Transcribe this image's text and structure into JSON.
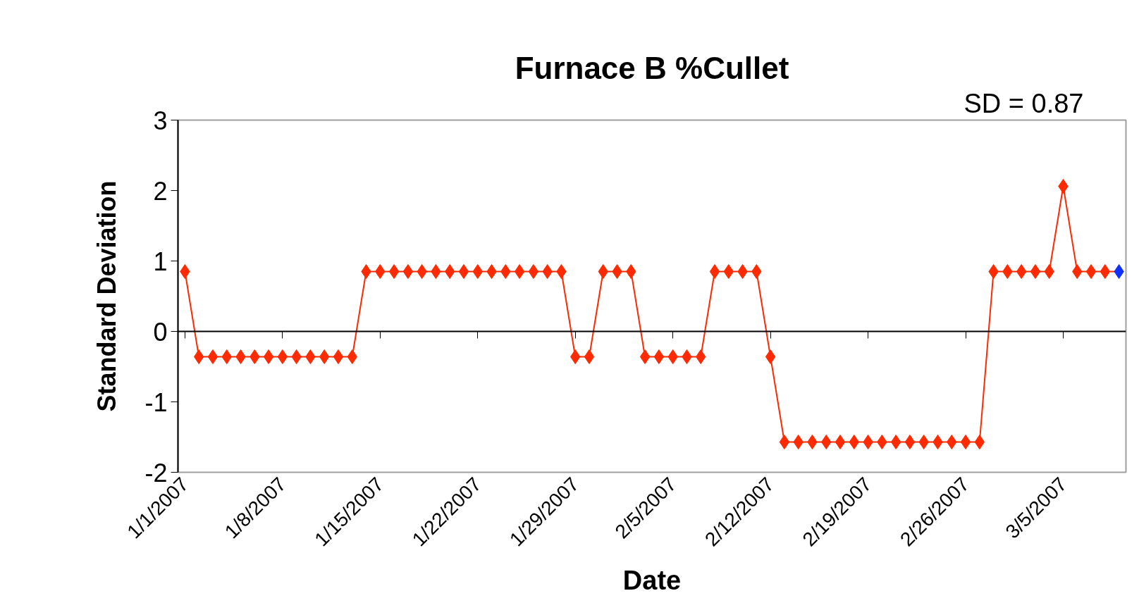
{
  "chart_data": {
    "type": "line",
    "title": "Furnace B %Cullet",
    "xlabel": "Date",
    "ylabel": "Standard Deviation",
    "annotations": [
      "SD = 0.87"
    ],
    "x": [
      "2007-01-01",
      "2007-01-02",
      "2007-01-03",
      "2007-01-04",
      "2007-01-05",
      "2007-01-06",
      "2007-01-07",
      "2007-01-08",
      "2007-01-09",
      "2007-01-10",
      "2007-01-11",
      "2007-01-12",
      "2007-01-13",
      "2007-01-14",
      "2007-01-15",
      "2007-01-16",
      "2007-01-17",
      "2007-01-18",
      "2007-01-19",
      "2007-01-20",
      "2007-01-21",
      "2007-01-22",
      "2007-01-23",
      "2007-01-24",
      "2007-01-25",
      "2007-01-26",
      "2007-01-27",
      "2007-01-28",
      "2007-01-29",
      "2007-01-30",
      "2007-01-31",
      "2007-02-01",
      "2007-02-02",
      "2007-02-03",
      "2007-02-04",
      "2007-02-05",
      "2007-02-06",
      "2007-02-07",
      "2007-02-08",
      "2007-02-09",
      "2007-02-10",
      "2007-02-11",
      "2007-02-12",
      "2007-02-13",
      "2007-02-14",
      "2007-02-15",
      "2007-02-16",
      "2007-02-17",
      "2007-02-18",
      "2007-02-19",
      "2007-02-20",
      "2007-02-21",
      "2007-02-22",
      "2007-02-23",
      "2007-02-24",
      "2007-02-25",
      "2007-02-26",
      "2007-02-27",
      "2007-02-28",
      "2007-03-01",
      "2007-03-02",
      "2007-03-03",
      "2007-03-04",
      "2007-03-05",
      "2007-03-06",
      "2007-03-07",
      "2007-03-08",
      "2007-03-09"
    ],
    "series": [
      {
        "color": "#ff2a00",
        "colors": [
          "#ff2a00",
          "#ff2a00",
          "#ff2a00",
          "#ff2a00",
          "#ff2a00",
          "#ff2a00",
          "#ff2a00",
          "#ff2a00",
          "#ff2a00",
          "#ff2a00",
          "#ff2a00",
          "#ff2a00",
          "#ff2a00",
          "#ff2a00",
          "#ff2a00",
          "#ff2a00",
          "#ff2a00",
          "#ff2a00",
          "#ff2a00",
          "#ff2a00",
          "#ff2a00",
          "#ff2a00",
          "#ff2a00",
          "#ff2a00",
          "#ff2a00",
          "#ff2a00",
          "#ff2a00",
          "#ff2a00",
          "#ff2a00",
          "#ff2a00",
          "#ff2a00",
          "#ff2a00",
          "#ff2a00",
          "#ff2a00",
          "#ff2a00",
          "#ff2a00",
          "#ff2a00",
          "#ff2a00",
          "#ff2a00",
          "#ff2a00",
          "#ff2a00",
          "#ff2a00",
          "#ff2a00",
          "#ff2a00",
          "#ff2a00",
          "#ff2a00",
          "#ff2a00",
          "#ff2a00",
          "#ff2a00",
          "#ff2a00",
          "#ff2a00",
          "#ff2a00",
          "#ff2a00",
          "#ff2a00",
          "#ff2a00",
          "#ff2a00",
          "#ff2a00",
          "#ff2a00",
          "#ff2a00",
          "#ff2a00",
          "#ff2a00",
          "#ff2a00",
          "#ff2a00",
          "#ff2a00",
          "#ff2a00",
          "#ff2a00",
          "#ff2a00",
          "#1030ff"
        ],
        "values": [
          0.85,
          -0.36,
          -0.36,
          -0.36,
          -0.36,
          -0.36,
          -0.36,
          -0.36,
          -0.36,
          -0.36,
          -0.36,
          -0.36,
          -0.36,
          0.85,
          0.85,
          0.85,
          0.85,
          0.85,
          0.85,
          0.85,
          0.85,
          0.85,
          0.85,
          0.85,
          0.85,
          0.85,
          0.85,
          0.85,
          -0.36,
          -0.36,
          0.85,
          0.85,
          0.85,
          -0.36,
          -0.36,
          -0.36,
          -0.36,
          -0.36,
          0.85,
          0.85,
          0.85,
          0.85,
          -0.36,
          -1.57,
          -1.57,
          -1.57,
          -1.57,
          -1.57,
          -1.57,
          -1.57,
          -1.57,
          -1.57,
          -1.57,
          -1.57,
          -1.57,
          -1.57,
          -1.57,
          -1.57,
          0.85,
          0.85,
          0.85,
          0.85,
          0.85,
          2.06,
          0.85,
          0.85,
          0.85,
          0.85
        ]
      }
    ],
    "xlim": [
      "2006-12-31T12:00",
      "2007-03-09T12:00"
    ],
    "xticks": [
      {
        "value": "2007-01-01",
        "label": "1/1/2007"
      },
      {
        "value": "2007-01-08",
        "label": "1/8/2007"
      },
      {
        "value": "2007-01-15",
        "label": "1/15/2007"
      },
      {
        "value": "2007-01-22",
        "label": "1/22/2007"
      },
      {
        "value": "2007-01-29",
        "label": "1/29/2007"
      },
      {
        "value": "2007-02-05",
        "label": "2/5/2007"
      },
      {
        "value": "2007-02-12",
        "label": "2/12/2007"
      },
      {
        "value": "2007-02-19",
        "label": "2/19/2007"
      },
      {
        "value": "2007-02-26",
        "label": "2/26/2007"
      },
      {
        "value": "2007-03-05",
        "label": "3/5/2007"
      }
    ],
    "ylim": [
      -2,
      3
    ],
    "yticks": [
      -2,
      -1,
      0,
      1,
      2,
      3
    ],
    "marker": "diamond",
    "line_style": "solid"
  }
}
